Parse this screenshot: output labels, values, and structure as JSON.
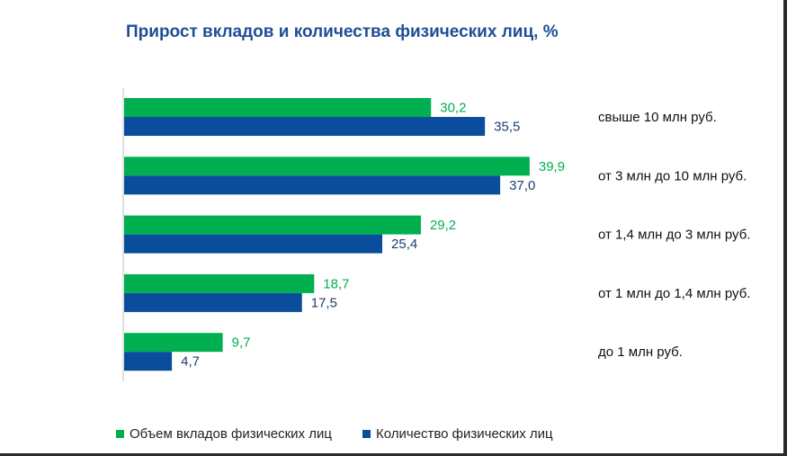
{
  "chart_data": {
    "type": "bar",
    "orientation": "horizontal",
    "title": "Прирост вкладов и количества физических лиц, %",
    "categories": [
      "свыше 10 млн руб.",
      "от 3 млн до 10 млн руб.",
      "от 1,4 млн до 3 млн руб.",
      "от 1 млн до 1,4 млн руб.",
      "до 1 млн руб."
    ],
    "series": [
      {
        "name": "Объем вкладов физических лиц",
        "color": "#00b050",
        "values": [
          30.2,
          39.9,
          29.2,
          18.7,
          9.7
        ],
        "labels": [
          "30,2",
          "39,9",
          "29,2",
          "18,7",
          "9,7"
        ]
      },
      {
        "name": "Количество физических лиц",
        "color": "#0a4d9c",
        "values": [
          35.5,
          37.0,
          25.4,
          17.5,
          4.7
        ],
        "labels": [
          "35,5",
          "37,0",
          "25,4",
          "17,5",
          "4,7"
        ]
      }
    ],
    "xlim": [
      0,
      40
    ],
    "grid": false,
    "legend_position": "bottom-left"
  }
}
